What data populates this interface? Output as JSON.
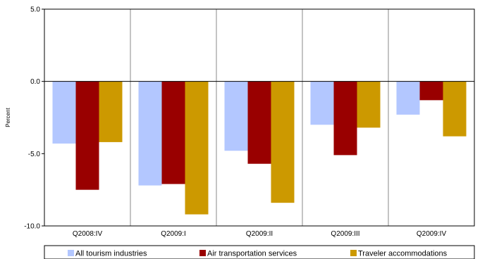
{
  "chart_data": {
    "type": "bar",
    "title": "",
    "xlabel": "",
    "ylabel": "Percent",
    "ylim": [
      -10,
      5
    ],
    "yticks": [
      5,
      0,
      -5,
      -10
    ],
    "ytick_labels": [
      "5.0",
      "0.0",
      "-5.0",
      "-10.0"
    ],
    "grid": "vertical separators between categories",
    "legend_position": "bottom",
    "categories": [
      "Q2008:IV",
      "Q2009:I",
      "Q2009:II",
      "Q2009:III",
      "Q2009:IV"
    ],
    "series": [
      {
        "name": "All tourism industries",
        "color": "#b3c7ff",
        "values": [
          -4.3,
          -7.2,
          -4.8,
          -3.0,
          -2.3
        ]
      },
      {
        "name": "Air transportation services",
        "color": "#990000",
        "values": [
          -7.5,
          -7.1,
          -5.7,
          -5.1,
          -1.3
        ]
      },
      {
        "name": "Traveler accommodations",
        "color": "#cc9900",
        "values": [
          -4.2,
          -9.2,
          -8.4,
          -3.2,
          -3.8
        ]
      }
    ]
  }
}
